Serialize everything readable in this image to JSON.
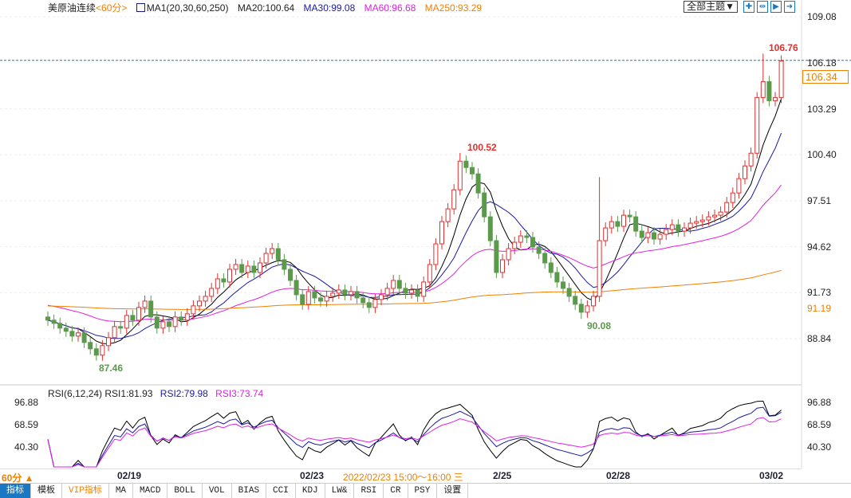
{
  "header": {
    "symbol": "美原油连续",
    "period": "<60分>",
    "indicator": "MA1(20,30,60,250)",
    "ma20": "MA20:100.64",
    "ma30": "MA30:99.08",
    "ma60": "MA60:96.68",
    "ma250": "MA250:93.29",
    "theme_button": "全部主题▼"
  },
  "colors": {
    "up": "#e03030",
    "down": "#5a9a4a",
    "ma20": "#000000",
    "ma30": "#1a1aa0",
    "ma60": "#e020e0",
    "ma250": "#f08000",
    "accent": "#1a78c2"
  },
  "price_axis": [
    "109.08",
    "106.18",
    "103.29",
    "100.40",
    "97.51",
    "94.62",
    "91.73",
    "88.84"
  ],
  "current_price": "106.34",
  "ma250_tag": "91.19",
  "markers": {
    "high": "106.76",
    "peak": "100.52",
    "trough": "90.08",
    "low": "87.46"
  },
  "rsi": {
    "title": "RSI(6,12,24)",
    "rsi1": "RSI1:81.93",
    "rsi2": "RSI2:79.98",
    "rsi3": "RSI3:73.74",
    "axis": [
      "96.88",
      "68.59",
      "40.30"
    ]
  },
  "time_axis": {
    "period_button": "60分 ▲",
    "labels": [
      "02/19",
      "02/23",
      "2/25",
      "02/28",
      "03/02"
    ],
    "cursor_time": "2022/02/23 15:00～16:00 三"
  },
  "tabs": [
    "指标",
    "模板",
    "VIP指标",
    "MA",
    "MACD",
    "BOLL",
    "VOL",
    "BIAS",
    "CCI",
    "KDJ",
    "LW&",
    "RSI",
    "CR",
    "PSY",
    "设置"
  ],
  "chart_data": {
    "type": "candlestick",
    "y_range": [
      88.84,
      109.08
    ],
    "closes": [
      90.0,
      89.8,
      89.5,
      89.3,
      89.0,
      89.2,
      88.6,
      88.2,
      87.8,
      88.4,
      88.9,
      89.6,
      89.5,
      90.3,
      90.0,
      90.8,
      91.2,
      90.2,
      89.5,
      89.9,
      89.6,
      90.2,
      90.0,
      90.4,
      90.9,
      91.2,
      91.5,
      92.0,
      92.6,
      92.4,
      93.2,
      93.5,
      93.0,
      93.4,
      93.0,
      93.6,
      94.2,
      94.5,
      93.8,
      93.2,
      92.5,
      91.6,
      91.0,
      91.8,
      91.4,
      91.2,
      91.5,
      91.7,
      91.9,
      91.6,
      91.8,
      91.4,
      91.1,
      90.8,
      91.3,
      91.6,
      92.0,
      92.5,
      92.0,
      91.7,
      91.9,
      91.5,
      92.4,
      93.5,
      94.8,
      96.2,
      97.0,
      98.2,
      100.0,
      99.6,
      99.2,
      98.0,
      96.5,
      95.0,
      93.0,
      93.8,
      94.5,
      94.9,
      95.3,
      95.2,
      94.6,
      94.2,
      93.6,
      93.0,
      92.4,
      92.0,
      91.5,
      91.0,
      90.5,
      90.9,
      91.5,
      95.0,
      95.8,
      96.2,
      95.9,
      96.6,
      96.5,
      95.6,
      95.2,
      95.5,
      95.1,
      95.4,
      95.7,
      96.0,
      95.6,
      95.8,
      96.1,
      96.2,
      96.3,
      96.5,
      96.6,
      96.8,
      97.4,
      98.0,
      98.9,
      99.7,
      100.5,
      104.0,
      105.0,
      103.8,
      104.0,
      106.3
    ]
  }
}
